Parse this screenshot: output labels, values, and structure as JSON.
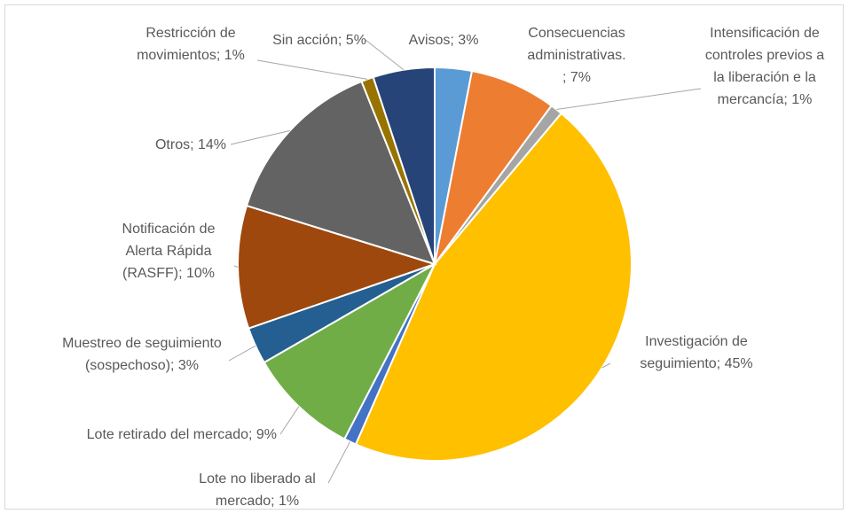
{
  "chart_data": {
    "type": "pie",
    "values": [
      3,
      7,
      1,
      45,
      1,
      9,
      3,
      10,
      14,
      1,
      5
    ],
    "value_labels": [
      "Avisos; 3%",
      "Consecuencias\nadministrativas.\n; 7%",
      "Intensificación de\ncontroles previos a\nla liberación e la\nmercancía; 1%",
      "Investigación de\nseguimiento; 45%",
      "Lote no liberado al\nmercado; 1%",
      "Lote retirado del mercado; 9%",
      "Muestreo de seguimiento\n(sospechoso); 3%",
      "Notificación de\nAlerta Rápida\n(RASFF); 10%",
      "Otros; 14%",
      "Restricción de\nmovimientos; 1%",
      "Sin acción; 5%"
    ],
    "colors": [
      "#5b9bd5",
      "#ed7d31",
      "#a5a5a5",
      "#ffc000",
      "#4472c4",
      "#70ad47",
      "#255e91",
      "#9e480e",
      "#636363",
      "#997300",
      "#264478"
    ]
  }
}
